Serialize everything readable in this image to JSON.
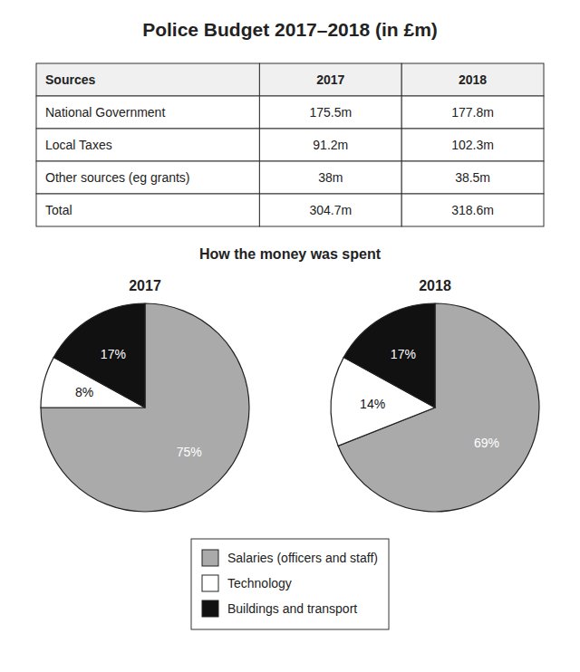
{
  "chart_data": [
    {
      "type": "table",
      "title": "Police Budget 2017–2018 (in £m)",
      "xlabel": "Sources",
      "categories": [
        "National Government",
        "Local Taxes",
        "Other sources (eg grants)",
        "Total"
      ],
      "series": [
        {
          "name": "2017",
          "values": [
            175.5,
            91.2,
            38,
            304.7
          ],
          "value_labels": [
            "175.5m",
            "91.2m",
            "38m",
            "304.7m"
          ]
        },
        {
          "name": "2018",
          "values": [
            177.8,
            102.3,
            38.5,
            318.6
          ],
          "value_labels": [
            "177.8m",
            "102.3m",
            "38.5m",
            "318.6m"
          ]
        }
      ]
    },
    {
      "type": "pie",
      "title": "How the money was spent",
      "categories": [
        "Salaries (officers and staff)",
        "Technology",
        "Buildings and transport"
      ],
      "colors": [
        "#aaaaaa",
        "#ffffff",
        "#111111"
      ],
      "data_labels": true,
      "legend": "bottom",
      "series": [
        {
          "name": "2017",
          "values": [
            75,
            8,
            17
          ],
          "value_labels": [
            "75%",
            "8%",
            "17%"
          ]
        },
        {
          "name": "2018",
          "values": [
            69,
            14,
            17
          ],
          "value_labels": [
            "69%",
            "14%",
            "17%"
          ]
        }
      ]
    }
  ]
}
